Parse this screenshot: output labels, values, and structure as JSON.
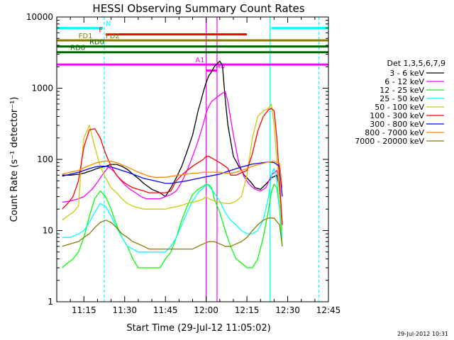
{
  "chart_data": {
    "type": "line",
    "title": "HESSI Observing Summary Count Rates",
    "xlabel": "Start Time (29-Jul-12 11:05:02)",
    "ylabel": "Count Rate (s⁻¹ detector⁻¹)",
    "y_scale": "log",
    "ylim": [
      1,
      10000
    ],
    "x_units": "minutes after 11:05:02",
    "xlim": [
      0,
      100
    ],
    "x_ticks": [
      {
        "label": "11:15",
        "x": 10
      },
      {
        "label": "11:30",
        "x": 25
      },
      {
        "label": "11:45",
        "x": 40
      },
      {
        "label": "12:00",
        "x": 55
      },
      {
        "label": "12:15",
        "x": 70
      },
      {
        "label": "12:30",
        "x": 85
      },
      {
        "label": "12:45",
        "x": 100
      }
    ],
    "y_ticks": [
      {
        "label": "1",
        "y": 1
      },
      {
        "label": "10",
        "y": 10
      },
      {
        "label": "100",
        "y": 100
      },
      {
        "label": "1000",
        "y": 1000
      },
      {
        "label": "10000",
        "y": 10000
      }
    ],
    "legend_title": "Det 1,3,5,6,7,9",
    "legend_position": "right, outside plot",
    "series": [
      {
        "name": "3 - 6 keV",
        "color": "#000000",
        "x": [
          2,
          5,
          8,
          10,
          13,
          15,
          18,
          20,
          22,
          24,
          26,
          28,
          30,
          32,
          35,
          38,
          40,
          42,
          44,
          46,
          48,
          50,
          51,
          52,
          53,
          54,
          55,
          56,
          57,
          58,
          59,
          60,
          61,
          62,
          63,
          65,
          67,
          69,
          70,
          71,
          72,
          73,
          75,
          77,
          79,
          81,
          82,
          83
        ],
        "y": [
          60,
          60,
          62,
          64,
          70,
          75,
          80,
          85,
          85,
          80,
          72,
          62,
          54,
          46,
          38,
          34,
          30,
          40,
          55,
          80,
          130,
          220,
          320,
          480,
          650,
          900,
          1200,
          1500,
          1700,
          2000,
          2200,
          2400,
          2100,
          700,
          300,
          110,
          80,
          60,
          55,
          50,
          45,
          40,
          38,
          45,
          55,
          60,
          40,
          12
        ]
      },
      {
        "name": "6 - 12 keV",
        "color": "#ff00ff",
        "x": [
          2,
          5,
          8,
          10,
          13,
          15,
          17,
          19,
          21,
          23,
          25,
          27,
          29,
          31,
          33,
          35,
          38,
          40,
          42,
          44,
          46,
          48,
          50,
          52,
          54,
          55,
          56,
          57,
          58,
          60,
          62,
          63,
          65,
          67,
          69,
          71,
          73,
          75,
          77,
          79,
          81,
          82,
          83
        ],
        "y": [
          25,
          26,
          28,
          30,
          38,
          48,
          62,
          78,
          68,
          54,
          44,
          38,
          34,
          30,
          28,
          28,
          28,
          30,
          32,
          36,
          48,
          70,
          110,
          180,
          320,
          450,
          560,
          650,
          700,
          800,
          900,
          640,
          220,
          90,
          56,
          44,
          38,
          36,
          40,
          60,
          70,
          40,
          12
        ]
      },
      {
        "name": "12 - 25 keV",
        "color": "#00ff00",
        "x": [
          2,
          4,
          6,
          8,
          10,
          12,
          14,
          16,
          18,
          20,
          22,
          24,
          26,
          28,
          30,
          32,
          34,
          36,
          38,
          40,
          42,
          44,
          46,
          48,
          50,
          52,
          54,
          55,
          56,
          57,
          58,
          60,
          62,
          64,
          66,
          68,
          70,
          72,
          74,
          76,
          78,
          79,
          80,
          81,
          82,
          83
        ],
        "y": [
          3,
          3.5,
          4,
          5,
          8,
          16,
          28,
          36,
          30,
          20,
          12,
          8,
          6,
          4,
          3,
          3,
          3,
          3,
          3,
          4,
          5,
          8,
          14,
          22,
          32,
          38,
          42,
          45,
          44,
          40,
          28,
          18,
          10,
          6,
          4,
          3.5,
          3,
          3,
          4,
          8,
          20,
          35,
          45,
          40,
          20,
          6
        ]
      },
      {
        "name": "25 - 50 keV",
        "color": "#00ffff",
        "x": [
          2,
          5,
          8,
          10,
          12,
          14,
          16,
          18,
          20,
          22,
          24,
          26,
          28,
          30,
          32,
          34,
          36,
          38,
          40,
          42,
          44,
          46,
          48,
          50,
          52,
          54,
          55,
          56,
          58,
          60,
          62,
          64,
          66,
          68,
          70,
          72,
          74,
          76,
          78,
          79,
          80,
          81,
          82,
          83
        ],
        "y": [
          8,
          8,
          9,
          10,
          13,
          18,
          24,
          22,
          16,
          11,
          8,
          6,
          5.5,
          5,
          5,
          5,
          5,
          5,
          5,
          6,
          8,
          12,
          18,
          26,
          34,
          40,
          44,
          42,
          34,
          26,
          18,
          14,
          12,
          10,
          9,
          9,
          10,
          14,
          30,
          60,
          75,
          50,
          20,
          8
        ]
      },
      {
        "name": "50 - 100 keV",
        "color": "#cccc00",
        "x": [
          2,
          4,
          6,
          8,
          9,
          10,
          12,
          14,
          16,
          18,
          20,
          22,
          24,
          26,
          28,
          30,
          32,
          34,
          36,
          38,
          40,
          42,
          45,
          48,
          50,
          52,
          54,
          55,
          56,
          58,
          60,
          62,
          64,
          66,
          68,
          70,
          72,
          74,
          76,
          78,
          79,
          80,
          81,
          82,
          83
        ],
        "y": [
          14,
          16,
          18,
          22,
          80,
          200,
          300,
          150,
          80,
          55,
          40,
          34,
          28,
          24,
          22,
          21,
          20,
          20,
          20,
          20,
          20,
          21,
          22,
          24,
          25,
          26,
          28,
          30,
          28,
          26,
          25,
          24,
          24,
          26,
          30,
          60,
          200,
          400,
          480,
          520,
          600,
          300,
          100,
          30,
          10
        ]
      },
      {
        "name": "100 - 300 keV",
        "color": "#ff0000",
        "x": [
          2,
          4,
          6,
          8,
          10,
          12,
          14,
          16,
          18,
          20,
          22,
          24,
          26,
          28,
          30,
          32,
          34,
          36,
          38,
          40,
          42,
          44,
          46,
          48,
          50,
          52,
          54,
          55,
          56,
          58,
          60,
          62,
          63,
          64,
          66,
          68,
          70,
          72,
          74,
          76,
          78,
          79,
          80,
          81,
          82,
          83
        ],
        "y": [
          20,
          24,
          30,
          50,
          150,
          260,
          270,
          200,
          120,
          80,
          60,
          50,
          44,
          40,
          38,
          36,
          34,
          34,
          34,
          34,
          36,
          50,
          60,
          70,
          80,
          90,
          100,
          110,
          110,
          100,
          90,
          80,
          75,
          60,
          60,
          65,
          70,
          120,
          250,
          400,
          500,
          520,
          480,
          200,
          50,
          12
        ]
      },
      {
        "name": "300 - 800 keV",
        "color": "#0000ff",
        "x": [
          2,
          5,
          8,
          10,
          12,
          14,
          16,
          18,
          20,
          22,
          24,
          26,
          28,
          30,
          32,
          34,
          36,
          38,
          40,
          42,
          45,
          48,
          50,
          52,
          54,
          56,
          58,
          60,
          62,
          64,
          66,
          68,
          70,
          72,
          74,
          76,
          78,
          80,
          82,
          83
        ],
        "y": [
          58,
          62,
          66,
          70,
          74,
          78,
          80,
          80,
          78,
          74,
          70,
          66,
          62,
          58,
          54,
          52,
          50,
          48,
          46,
          46,
          48,
          50,
          52,
          54,
          56,
          58,
          60,
          62,
          66,
          70,
          74,
          78,
          82,
          86,
          88,
          90,
          92,
          90,
          80,
          30
        ]
      },
      {
        "name": "800 - 7000 keV",
        "color": "#ff8800",
        "x": [
          2,
          5,
          8,
          10,
          12,
          14,
          16,
          18,
          20,
          22,
          24,
          26,
          28,
          30,
          32,
          34,
          36,
          38,
          40,
          42,
          45,
          48,
          50,
          52,
          54,
          56,
          58,
          60,
          62,
          64,
          66,
          68,
          70,
          72,
          74,
          76,
          78,
          80,
          82,
          83
        ],
        "y": [
          62,
          66,
          70,
          76,
          82,
          88,
          92,
          95,
          94,
          90,
          84,
          78,
          72,
          66,
          62,
          58,
          56,
          56,
          56,
          58,
          60,
          62,
          64,
          64,
          66,
          66,
          66,
          66,
          64,
          64,
          66,
          70,
          74,
          80,
          84,
          88,
          92,
          94,
          88,
          40
        ]
      },
      {
        "name": "7000 - 20000 keV",
        "color": "#8b7a00",
        "x": [
          2,
          5,
          8,
          10,
          12,
          14,
          16,
          18,
          20,
          22,
          24,
          26,
          28,
          30,
          32,
          34,
          36,
          38,
          40,
          42,
          45,
          48,
          50,
          52,
          54,
          56,
          58,
          60,
          62,
          64,
          66,
          68,
          70,
          72,
          74,
          76,
          78,
          80,
          82,
          83
        ],
        "y": [
          6,
          6.5,
          7,
          8,
          9,
          11,
          13,
          14,
          13,
          11,
          9,
          8,
          7,
          6.5,
          6,
          5.5,
          5.5,
          5.5,
          5.5,
          5.5,
          5.5,
          5.5,
          5.5,
          6,
          6.5,
          7,
          7,
          6.5,
          6,
          6,
          6.5,
          7,
          8,
          10,
          12,
          14,
          15,
          15,
          12,
          6
        ]
      }
    ],
    "annotation_rows": [
      {
        "label": "N",
        "color": "#00ffff",
        "y": 7000,
        "label_x": 18,
        "segments": [
          [
            0,
            17
          ],
          [
            79,
            100
          ]
        ]
      },
      {
        "label": "F",
        "color": "#ff0000",
        "y": 5700,
        "label_x": 15.5,
        "segments": [
          [
            18,
            70
          ]
        ]
      },
      {
        "label": "FD1",
        "color": "#8b7a00",
        "y": 4700,
        "label_x": 8,
        "segments": [
          [
            0,
            17
          ]
        ]
      },
      {
        "label": "FD2",
        "color": "#8b7a00",
        "y": 4700,
        "label_x": 18,
        "segments": [
          [
            17,
            100
          ]
        ]
      },
      {
        "label": "RD0",
        "color": "#006600",
        "y": 3850,
        "label_x": 12,
        "segments": [
          [
            0,
            100
          ]
        ]
      },
      {
        "label": "RD6",
        "color": "#006600",
        "y": 3200,
        "label_x": 5,
        "segments": [
          [
            0,
            100
          ]
        ]
      },
      {
        "label": "A1",
        "color": "#ff00ff",
        "y": 2150,
        "label_x": 51,
        "segments": [
          [
            0,
            100
          ]
        ]
      },
      {
        "label": "A0",
        "color": "#ff00ff",
        "y": 1770,
        "label_x": 58.5,
        "segments": [
          [
            55,
            59
          ]
        ]
      }
    ],
    "vertical_markers": [
      {
        "x": 0,
        "color": "#00ffff",
        "style": "solid"
      },
      {
        "x": 17.5,
        "color": "#00ffff",
        "style": "dashed"
      },
      {
        "x": 78.5,
        "color": "#00ffff",
        "style": "solid"
      },
      {
        "x": 96.5,
        "color": "#00ffff",
        "style": "dashed"
      },
      {
        "x": 55,
        "color": "#ff00ff",
        "style": "solid"
      },
      {
        "x": 59,
        "color": "#ff00ff",
        "style": "solid"
      }
    ]
  },
  "footer_stamp": "29-Jul-2012 10:31"
}
